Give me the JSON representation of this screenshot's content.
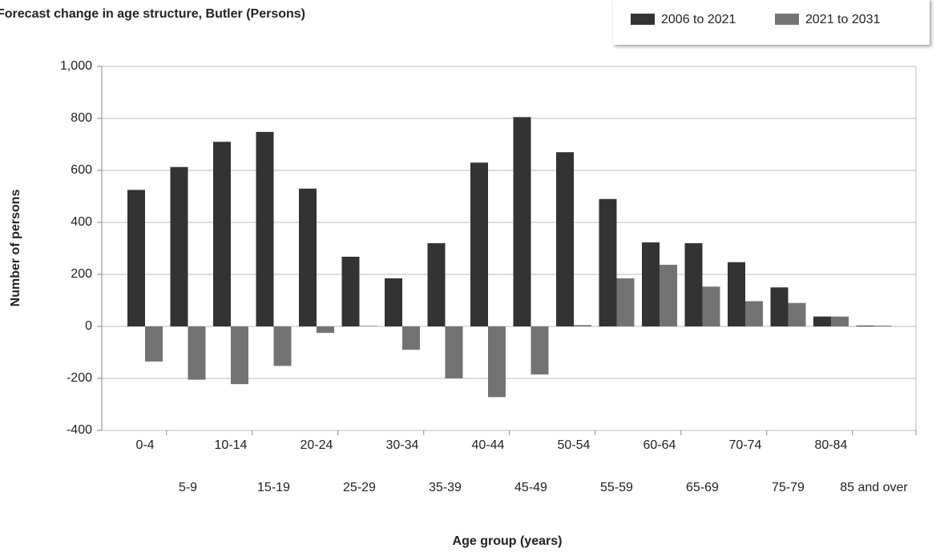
{
  "chart_data": {
    "type": "bar",
    "title": "Forecast change in age structure, Butler (Persons)",
    "xlabel": "Age group (years)",
    "ylabel": "Number of persons",
    "categories": [
      "0-4",
      "5-9",
      "10-14",
      "15-19",
      "20-24",
      "25-29",
      "30-34",
      "35-39",
      "40-44",
      "45-49",
      "50-54",
      "55-59",
      "60-64",
      "65-69",
      "70-74",
      "75-79",
      "80-84",
      "85 and over"
    ],
    "series": [
      {
        "name": "2006 to 2021",
        "color": "#333333",
        "values": [
          525,
          613,
          710,
          748,
          530,
          268,
          185,
          320,
          630,
          805,
          670,
          490,
          323,
          320,
          247,
          150,
          38,
          3
        ]
      },
      {
        "name": "2021 to 2031",
        "color": "#737373",
        "values": [
          -135,
          -205,
          -222,
          -152,
          -25,
          2,
          -90,
          -200,
          -272,
          -185,
          5,
          185,
          237,
          153,
          97,
          90,
          38,
          3
        ]
      }
    ],
    "ylim": [
      -400,
      1000
    ],
    "yticks": [
      {
        "value": 1000,
        "label": "1,000"
      },
      800,
      600,
      400,
      200,
      0,
      -200,
      -400
    ],
    "grid": true,
    "legend": "top-right"
  }
}
